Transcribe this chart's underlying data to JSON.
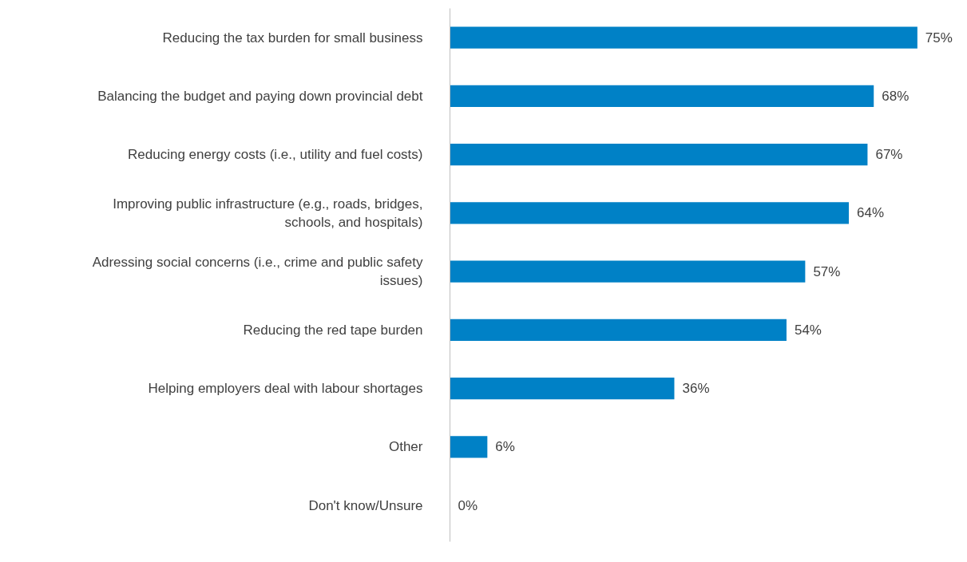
{
  "chart_data": {
    "type": "bar",
    "orientation": "horizontal",
    "categories": [
      "Reducing the tax burden for small business",
      "Balancing the budget and paying down provincial debt",
      "Reducing energy costs (i.e., utility and fuel costs)",
      "Improving public infrastructure (e.g., roads, bridges,\nschools, and hospitals)",
      "Adressing social concerns (i.e., crime and public safety\nissues)",
      "Reducing the red tape burden",
      "Helping employers deal with labour shortages",
      "Other",
      "Don't know/Unsure"
    ],
    "values": [
      75,
      68,
      67,
      64,
      57,
      54,
      36,
      6,
      0
    ],
    "color": "#0081c6",
    "value_labels": [
      "75%",
      "68%",
      "67%",
      "64%",
      "57%",
      "54%",
      "36%",
      "6%",
      "0%"
    ],
    "grid": false
  }
}
